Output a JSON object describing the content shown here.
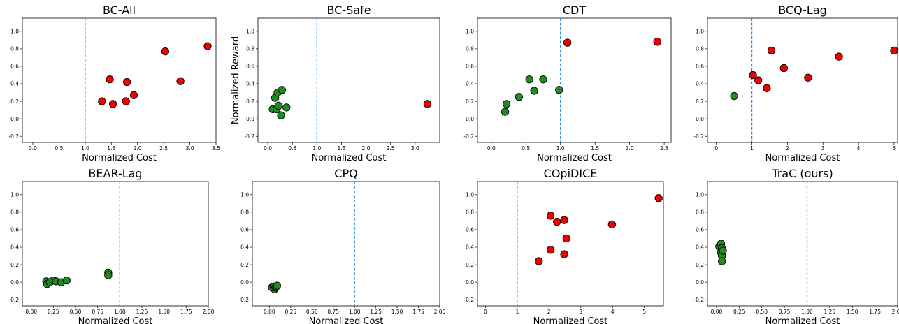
{
  "figure": {
    "safe_color": "#1e8c1e",
    "unsafe_color": "#ee0000",
    "threshold_color": "#2b8de0"
  },
  "chart_data": [
    {
      "type": "scatter",
      "title": "BC-All",
      "xlabel": "Normalized Cost",
      "ylabel": "",
      "xlim": [
        -0.2,
        3.5
      ],
      "ylim": [
        -0.27,
        1.15
      ],
      "xticks": [
        "0.0",
        "0.5",
        "1.0",
        "1.5",
        "2.0",
        "2.5",
        "3.0",
        "3.5"
      ],
      "yticks": [
        "-0.2",
        "0.0",
        "0.2",
        "0.4",
        "0.6",
        "0.8",
        "1.0"
      ],
      "threshold": 1.0,
      "points": [
        {
          "x": 1.32,
          "y": 0.2,
          "safe": false
        },
        {
          "x": 1.47,
          "y": 0.45,
          "safe": false
        },
        {
          "x": 1.53,
          "y": 0.17,
          "safe": false
        },
        {
          "x": 1.78,
          "y": 0.2,
          "safe": false
        },
        {
          "x": 1.8,
          "y": 0.42,
          "safe": false
        },
        {
          "x": 1.93,
          "y": 0.27,
          "safe": false
        },
        {
          "x": 2.53,
          "y": 0.77,
          "safe": false
        },
        {
          "x": 2.82,
          "y": 0.43,
          "safe": false
        },
        {
          "x": 3.34,
          "y": 0.83,
          "safe": false
        }
      ]
    },
    {
      "type": "scatter",
      "title": "BC-Safe",
      "xlabel": "Normalized Cost",
      "ylabel": "Normalized Reward",
      "xlim": [
        -0.2,
        3.5
      ],
      "ylim": [
        -0.27,
        1.15
      ],
      "xticks": [
        "0.0",
        "0.5",
        "1.0",
        "1.5",
        "2.0",
        "2.5",
        "3.0"
      ],
      "yticks": [
        "-0.2",
        "0.0",
        "0.2",
        "0.4",
        "0.6",
        "0.8",
        "1.0"
      ],
      "threshold": 1.0,
      "points": [
        {
          "x": 0.1,
          "y": 0.11,
          "safe": true
        },
        {
          "x": 0.15,
          "y": 0.24,
          "safe": true
        },
        {
          "x": 0.18,
          "y": 0.11,
          "safe": true
        },
        {
          "x": 0.2,
          "y": 0.3,
          "safe": true
        },
        {
          "x": 0.22,
          "y": 0.15,
          "safe": true
        },
        {
          "x": 0.27,
          "y": 0.04,
          "safe": true
        },
        {
          "x": 0.29,
          "y": 0.33,
          "safe": true
        },
        {
          "x": 0.38,
          "y": 0.13,
          "safe": true
        },
        {
          "x": 3.25,
          "y": 0.17,
          "safe": false
        }
      ]
    },
    {
      "type": "scatter",
      "title": "CDT",
      "xlabel": "Normalized Cost",
      "ylabel": "",
      "xlim": [
        -0.2,
        2.6
      ],
      "ylim": [
        -0.27,
        1.15
      ],
      "xticks": [
        "0.0",
        "0.5",
        "1.0",
        "1.5",
        "2.0",
        "2.5"
      ],
      "yticks": [
        "-0.2",
        "0.0",
        "0.2",
        "0.4",
        "0.6",
        "0.8",
        "1.0"
      ],
      "threshold": 1.0,
      "points": [
        {
          "x": 0.2,
          "y": 0.08,
          "safe": true
        },
        {
          "x": 0.22,
          "y": 0.17,
          "safe": true
        },
        {
          "x": 0.4,
          "y": 0.25,
          "safe": true
        },
        {
          "x": 0.55,
          "y": 0.45,
          "safe": true
        },
        {
          "x": 0.62,
          "y": 0.32,
          "safe": true
        },
        {
          "x": 0.75,
          "y": 0.45,
          "safe": true
        },
        {
          "x": 0.98,
          "y": 0.33,
          "safe": true
        },
        {
          "x": 1.1,
          "y": 0.87,
          "safe": false
        },
        {
          "x": 2.4,
          "y": 0.88,
          "safe": false
        }
      ]
    },
    {
      "type": "scatter",
      "title": "BCQ-Lag",
      "xlabel": "Normalized Cost",
      "ylabel": "",
      "xlim": [
        -0.25,
        5.1
      ],
      "ylim": [
        -0.27,
        1.15
      ],
      "xticks": [
        "0",
        "1",
        "2",
        "3",
        "4",
        "5"
      ],
      "yticks": [
        "-0.2",
        "0.0",
        "0.2",
        "0.4",
        "0.6",
        "0.8",
        "1.0"
      ],
      "threshold": 1.0,
      "points": [
        {
          "x": 0.5,
          "y": 0.26,
          "safe": true
        },
        {
          "x": 1.03,
          "y": 0.5,
          "safe": false
        },
        {
          "x": 1.18,
          "y": 0.44,
          "safe": false
        },
        {
          "x": 1.42,
          "y": 0.35,
          "safe": false
        },
        {
          "x": 1.55,
          "y": 0.78,
          "safe": false
        },
        {
          "x": 1.9,
          "y": 0.58,
          "safe": false
        },
        {
          "x": 2.58,
          "y": 0.47,
          "safe": false
        },
        {
          "x": 3.45,
          "y": 0.71,
          "safe": false
        },
        {
          "x": 5.0,
          "y": 0.78,
          "safe": false
        }
      ]
    },
    {
      "type": "scatter",
      "title": "BEAR-Lag",
      "xlabel": "Normalized Cost",
      "ylabel": "",
      "xlim": [
        -0.1,
        2.0
      ],
      "ylim": [
        -0.27,
        1.15
      ],
      "xticks": [
        "0.00",
        "0.25",
        "0.50",
        "0.75",
        "1.00",
        "1.25",
        "1.50",
        "1.75",
        "2.00"
      ],
      "yticks": [
        "-0.2",
        "0.0",
        "0.2",
        "0.4",
        "0.6",
        "0.8",
        "1.0"
      ],
      "threshold": 1.0,
      "points": [
        {
          "x": 0.17,
          "y": 0.01,
          "safe": true
        },
        {
          "x": 0.18,
          "y": -0.02,
          "safe": true
        },
        {
          "x": 0.21,
          "y": 0.0,
          "safe": true
        },
        {
          "x": 0.25,
          "y": 0.02,
          "safe": true
        },
        {
          "x": 0.28,
          "y": 0.01,
          "safe": true
        },
        {
          "x": 0.34,
          "y": 0.0,
          "safe": true
        },
        {
          "x": 0.4,
          "y": 0.02,
          "safe": true
        },
        {
          "x": 0.87,
          "y": 0.11,
          "safe": true
        },
        {
          "x": 0.87,
          "y": 0.08,
          "safe": true
        }
      ]
    },
    {
      "type": "scatter",
      "title": "CPQ",
      "xlabel": "Normalized Cost",
      "ylabel": "",
      "xlim": [
        -0.2,
        2.0
      ],
      "ylim": [
        -0.27,
        1.15
      ],
      "xticks": [
        "0.00",
        "0.25",
        "0.50",
        "0.75",
        "1.00",
        "1.25",
        "1.50",
        "1.75",
        "2.00"
      ],
      "yticks": [
        "-0.2",
        "0.0",
        "0.2",
        "0.4",
        "0.6",
        "0.8",
        "1.0"
      ],
      "threshold": 1.0,
      "points": [
        {
          "x": 0.03,
          "y": -0.06,
          "safe": true
        },
        {
          "x": 0.05,
          "y": -0.05,
          "safe": true
        },
        {
          "x": 0.06,
          "y": -0.08,
          "safe": true
        },
        {
          "x": 0.07,
          "y": -0.06,
          "safe": true
        },
        {
          "x": 0.08,
          "y": -0.05,
          "safe": true
        },
        {
          "x": 0.09,
          "y": -0.04,
          "safe": true
        }
      ]
    },
    {
      "type": "scatter",
      "title": "COpiDICE",
      "xlabel": "Normalized Cost",
      "ylabel": "",
      "xlim": [
        -0.25,
        5.6
      ],
      "ylim": [
        -0.27,
        1.15
      ],
      "xticks": [
        "0",
        "1",
        "2",
        "3",
        "4",
        "5"
      ],
      "yticks": [
        "-0.2",
        "0.0",
        "0.2",
        "0.4",
        "0.6",
        "0.8",
        "1.0"
      ],
      "threshold": 1.0,
      "points": [
        {
          "x": 1.68,
          "y": 0.24,
          "safe": false
        },
        {
          "x": 2.05,
          "y": 0.76,
          "safe": false
        },
        {
          "x": 2.05,
          "y": 0.37,
          "safe": false
        },
        {
          "x": 2.25,
          "y": 0.69,
          "safe": false
        },
        {
          "x": 2.48,
          "y": 0.71,
          "safe": false
        },
        {
          "x": 2.48,
          "y": 0.32,
          "safe": false
        },
        {
          "x": 2.55,
          "y": 0.5,
          "safe": false
        },
        {
          "x": 3.98,
          "y": 0.66,
          "safe": false
        },
        {
          "x": 5.45,
          "y": 0.96,
          "safe": false
        }
      ]
    },
    {
      "type": "scatter",
      "title": "TraC (ours)",
      "xlabel": "Normalized Cost",
      "ylabel": "",
      "xlim": [
        -0.1,
        2.0
      ],
      "ylim": [
        -0.27,
        1.15
      ],
      "xticks": [
        "0.00",
        "0.25",
        "0.50",
        "0.75",
        "1.00",
        "1.25",
        "1.50",
        "1.75",
        "2.00"
      ],
      "yticks": [
        "-0.2",
        "0.0",
        "0.2",
        "0.4",
        "0.6",
        "0.8",
        "1.0"
      ],
      "threshold": 1.0,
      "points": [
        {
          "x": 0.03,
          "y": 0.41,
          "safe": true
        },
        {
          "x": 0.05,
          "y": 0.44,
          "safe": true
        },
        {
          "x": 0.06,
          "y": 0.39,
          "safe": true
        },
        {
          "x": 0.05,
          "y": 0.34,
          "safe": true
        },
        {
          "x": 0.06,
          "y": 0.3,
          "safe": true
        },
        {
          "x": 0.07,
          "y": 0.36,
          "safe": true
        },
        {
          "x": 0.06,
          "y": 0.24,
          "safe": true
        }
      ]
    }
  ]
}
